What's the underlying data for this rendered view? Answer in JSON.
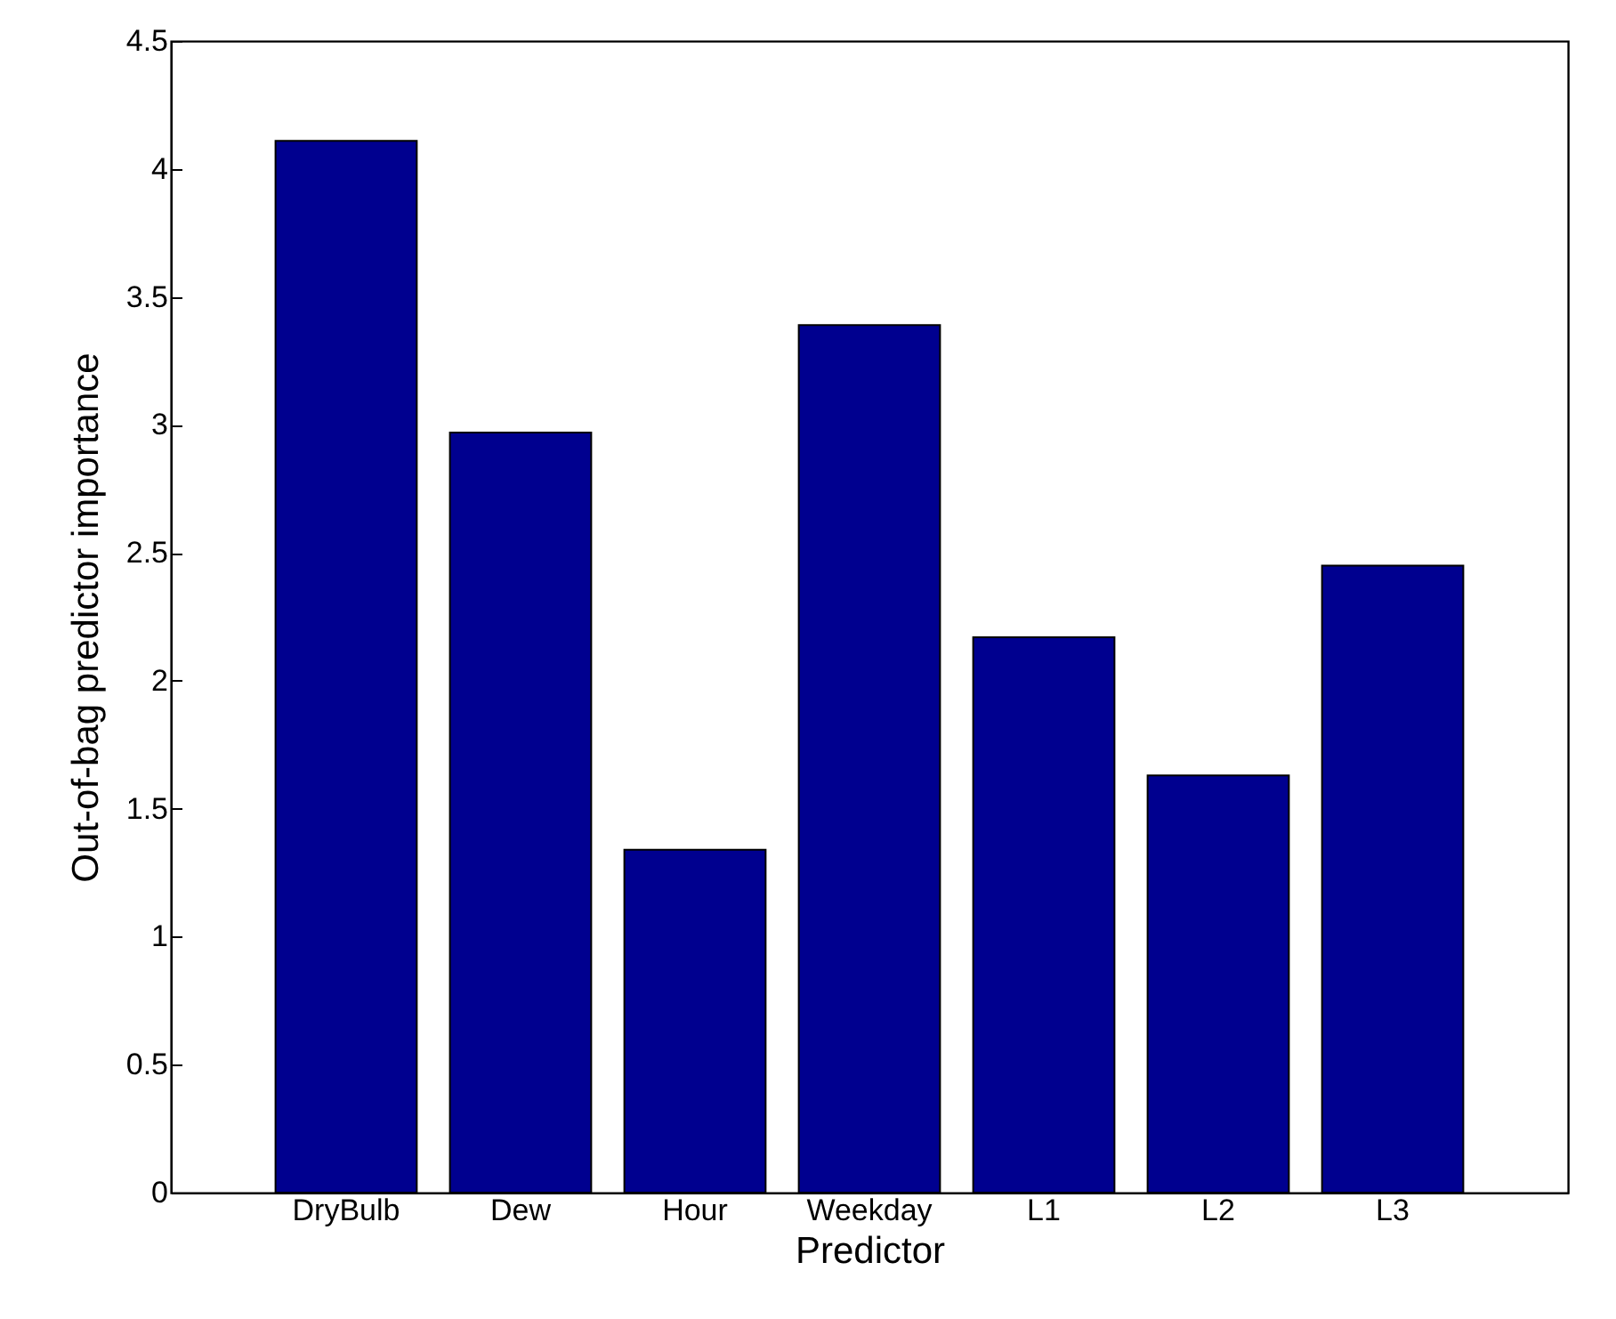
{
  "chart_data": {
    "type": "bar",
    "xlabel": "Predictor",
    "ylabel": "Out-of-bag predictor importance",
    "categories": [
      "DryBulb",
      "Dew",
      "Hour",
      "Weekday",
      "L1",
      "L2",
      "L3"
    ],
    "values": [
      4.11,
      2.97,
      1.34,
      3.39,
      2.17,
      1.63,
      2.45
    ],
    "color": "#00008f",
    "ylim": [
      0,
      4.5
    ],
    "yticks": [
      0,
      0.5,
      1,
      1.5,
      2,
      2.5,
      3,
      3.5,
      4,
      4.5
    ],
    "grid": false
  }
}
